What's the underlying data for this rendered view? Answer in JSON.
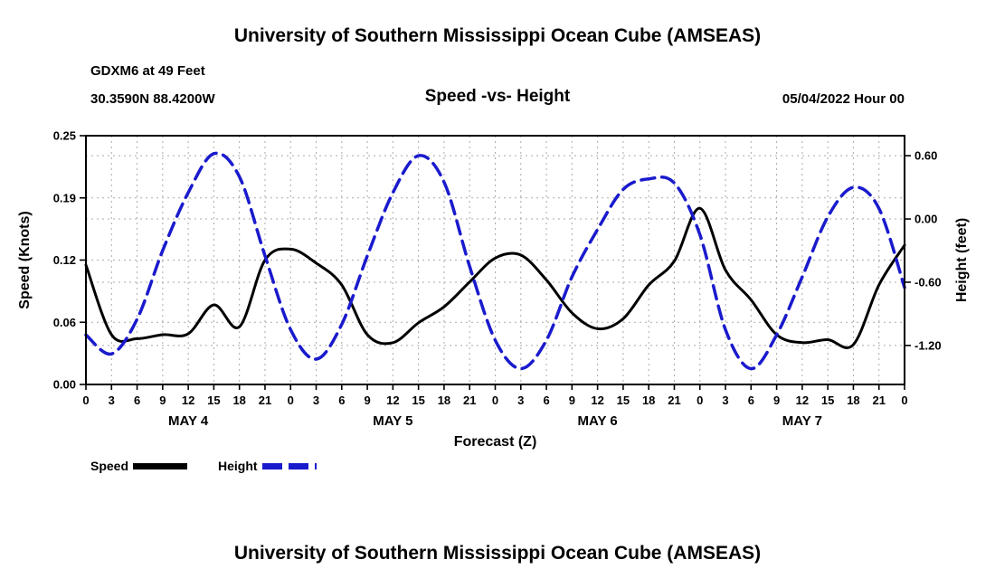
{
  "titles": {
    "top": "University of Southern Mississippi Ocean Cube (AMSEAS)",
    "bottom": "University of Southern Mississippi Ocean Cube (AMSEAS)"
  },
  "header": {
    "station": "GDXM6 at 49 Feet",
    "coordinates": "30.3590N  88.4200W",
    "plot_title": "Speed -vs- Height",
    "run_label": "05/04/2022 Hour 00"
  },
  "legend": {
    "items": [
      {
        "label": "Speed",
        "color": "#000000",
        "dashed": false
      },
      {
        "label": "Height",
        "color": "#1a1acd",
        "dashed": true
      }
    ]
  },
  "chart_data": {
    "type": "line",
    "title": "Speed -vs- Height",
    "xlabel": "Forecast (Z)",
    "xlim_hours": [
      0,
      96
    ],
    "x_tick_interval_hours": 3,
    "x_tick_label_mod": 24,
    "grid": true,
    "day_labels": [
      {
        "label": "MAY 4",
        "center_hour": 12
      },
      {
        "label": "MAY 5",
        "center_hour": 36
      },
      {
        "label": "MAY 6",
        "center_hour": 60
      },
      {
        "label": "MAY 7",
        "center_hour": 84
      }
    ],
    "left_axis": {
      "label": "Speed (Knots)",
      "lim": [
        0,
        0.25
      ],
      "ticks": [
        {
          "pos": 0.25,
          "label": "0.25"
        },
        {
          "pos": 0.1875,
          "label": "0.19"
        },
        {
          "pos": 0.125,
          "label": "0.12"
        },
        {
          "pos": 0.0625,
          "label": "0.06"
        },
        {
          "pos": 0.0,
          "label": "0.00"
        }
      ]
    },
    "right_axis": {
      "label": "Height (feet)",
      "lim": [
        -1.57,
        0.79
      ],
      "ticks": [
        {
          "pos": 0.6,
          "label": "0.60"
        },
        {
          "pos": 0.0,
          "label": "0.00"
        },
        {
          "pos": -0.6,
          "label": "-0.60"
        },
        {
          "pos": -1.2,
          "label": "-1.20"
        }
      ]
    },
    "x_hours": [
      0,
      3,
      6,
      9,
      12,
      15,
      18,
      21,
      24,
      27,
      30,
      33,
      36,
      39,
      42,
      45,
      48,
      51,
      54,
      57,
      60,
      63,
      66,
      69,
      72,
      75,
      78,
      81,
      84,
      87,
      90,
      93,
      96
    ],
    "series": [
      {
        "name": "Speed",
        "axis": "left",
        "units": "knots",
        "color": "#000000",
        "dash": null,
        "width": 3,
        "values": [
          0.12,
          0.05,
          0.046,
          0.05,
          0.051,
          0.08,
          0.058,
          0.125,
          0.136,
          0.122,
          0.1,
          0.05,
          0.042,
          0.062,
          0.078,
          0.103,
          0.127,
          0.13,
          0.105,
          0.072,
          0.056,
          0.066,
          0.1,
          0.124,
          0.177,
          0.115,
          0.085,
          0.05,
          0.042,
          0.045,
          0.04,
          0.1,
          0.14
        ]
      },
      {
        "name": "Height",
        "axis": "right",
        "units": "feet",
        "color": "#1a1acd",
        "dash": "15,8",
        "width": 3.5,
        "values": [
          -1.1,
          -1.28,
          -0.95,
          -0.3,
          0.25,
          0.62,
          0.4,
          -0.35,
          -1.05,
          -1.33,
          -1.0,
          -0.35,
          0.25,
          0.6,
          0.35,
          -0.45,
          -1.15,
          -1.42,
          -1.15,
          -0.55,
          -0.1,
          0.28,
          0.38,
          0.34,
          -0.15,
          -1.05,
          -1.42,
          -1.1,
          -0.55,
          0.02,
          0.3,
          0.1,
          -0.65
        ]
      }
    ]
  }
}
